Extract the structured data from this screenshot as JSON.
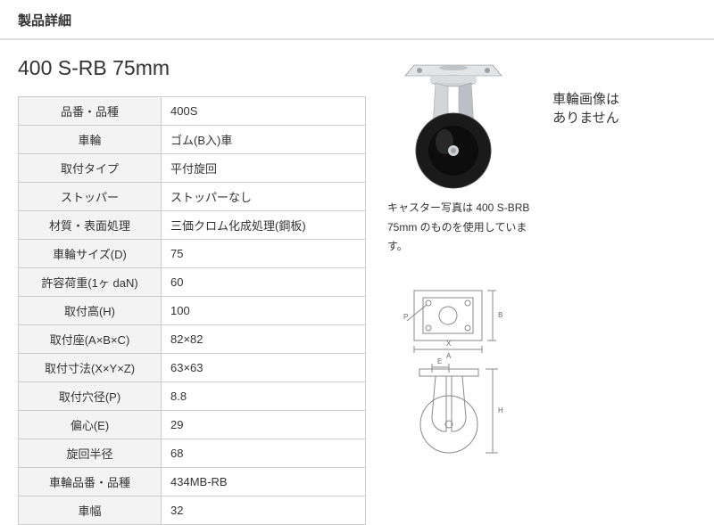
{
  "section_title": "製品詳細",
  "product_title": "400 S-RB 75mm",
  "spec_rows": [
    {
      "label": "品番・品種",
      "value": "400S"
    },
    {
      "label": "車輪",
      "value": "ゴム(B入)車"
    },
    {
      "label": "取付タイプ",
      "value": "平付旋回"
    },
    {
      "label": "ストッパー",
      "value": "ストッパーなし"
    },
    {
      "label": "材質・表面処理",
      "value": "三価クロム化成処理(鋼板)"
    },
    {
      "label": "車輪サイズ(D)",
      "value": "75"
    },
    {
      "label": "許容荷重(1ヶ daN)",
      "value": "60"
    },
    {
      "label": "取付高(H)",
      "value": "100"
    },
    {
      "label": "取付座(A×B×C)",
      "value": "82×82"
    },
    {
      "label": "取付寸法(X×Y×Z)",
      "value": "63×63"
    },
    {
      "label": "取付穴径(P)",
      "value": "8.8"
    },
    {
      "label": "偏心(E)",
      "value": "29"
    },
    {
      "label": "旋回半径",
      "value": "68"
    },
    {
      "label": "車輪品番・品種",
      "value": "434MB-RB"
    },
    {
      "label": "車幅",
      "value": "32"
    }
  ],
  "photo_caption_1": "キャスター写真は 400 S-BRB",
  "photo_caption_2": "75mm のものを使用しています。",
  "no_image_line1": "車輪画像は",
  "no_image_line2": "ありません",
  "colors": {
    "border": "#cccccc",
    "header_bg": "#f3f3f3",
    "hr": "#dddddd",
    "text": "#333333",
    "wheel_dark": "#1a1a1a",
    "metal": "#d9dde0",
    "metal_shadow": "#9aa0a5",
    "diagram_line": "#888888"
  }
}
